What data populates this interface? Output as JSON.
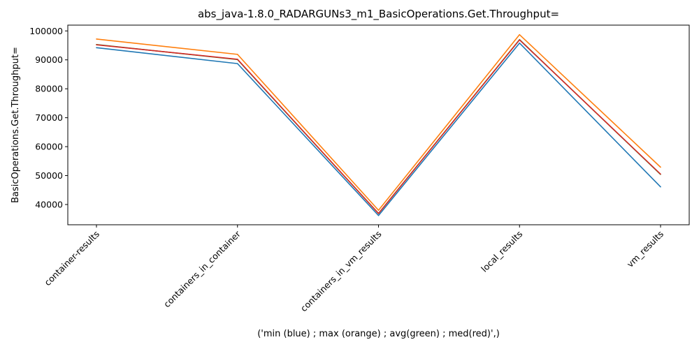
{
  "chart_data": {
    "type": "line",
    "title": "abs_java-1.8.0_RADARGUNs3_m1_BasicOperations.Get.Throughput=",
    "xlabel": "('min (blue) ; max (orange) ; avg(green) ; med(red)',)",
    "ylabel": "BasicOperations.Get.Throughput=",
    "categories": [
      "container-results",
      "containers_in_container",
      "containers_in_vm_results",
      "local_results",
      "vm_results"
    ],
    "ylim": [
      33000,
      102000
    ],
    "yticks": [
      40000,
      50000,
      60000,
      70000,
      80000,
      90000,
      100000
    ],
    "grid": false,
    "series": [
      {
        "key": "min",
        "color": "#1f77b4",
        "values": [
          94200,
          88700,
          36200,
          95800,
          46100
        ]
      },
      {
        "key": "max",
        "color": "#ff7f0e",
        "values": [
          97200,
          91900,
          38000,
          98700,
          52900
        ]
      },
      {
        "key": "avg",
        "color": "#2ca02c",
        "values": [
          95300,
          90100,
          36900,
          97000,
          50400
        ]
      },
      {
        "key": "med",
        "color": "#d62728",
        "values": [
          95200,
          90200,
          36900,
          96900,
          50500
        ]
      }
    ]
  }
}
